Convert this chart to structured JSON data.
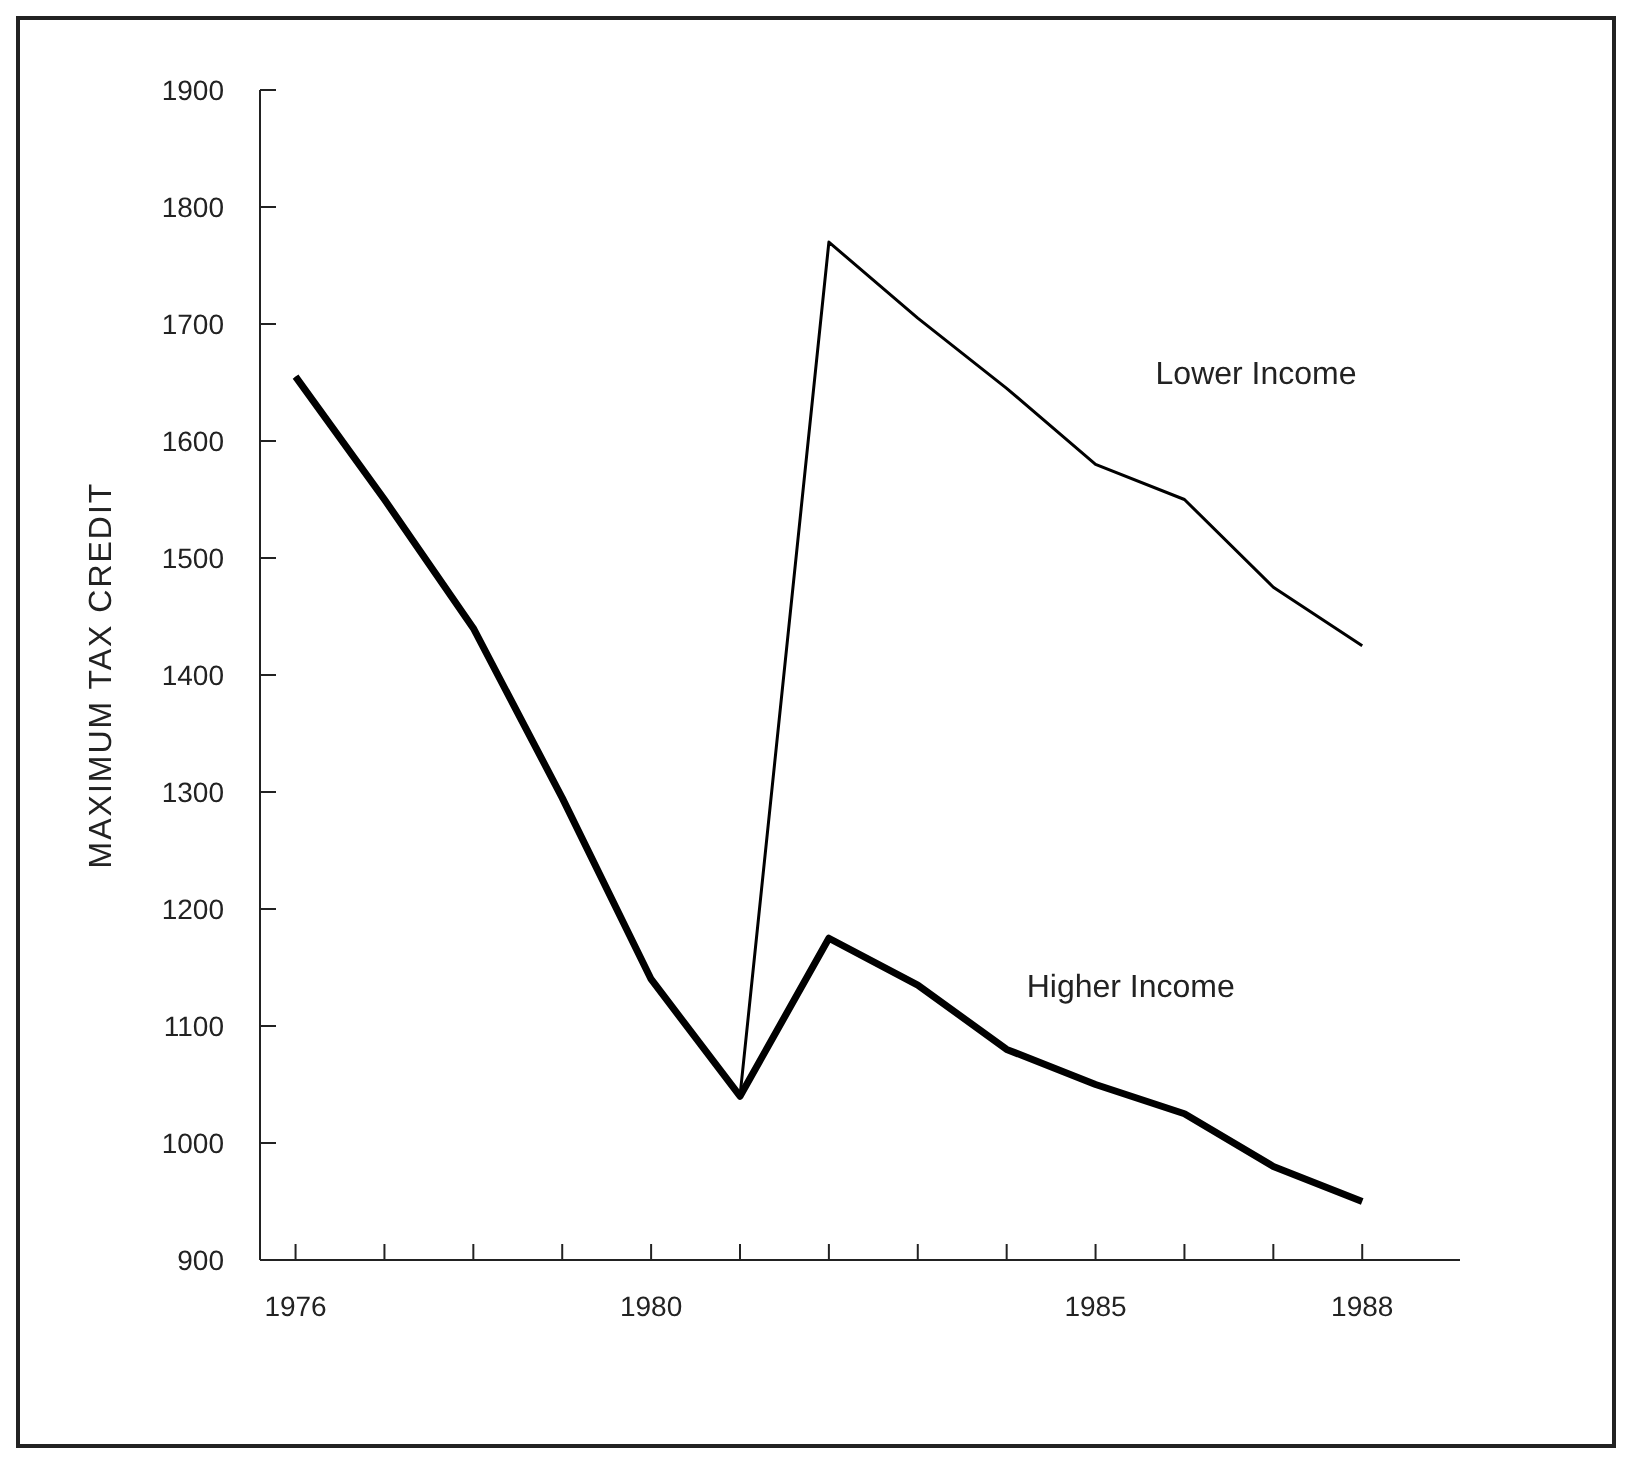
{
  "chart_data": {
    "type": "line",
    "ylabel": "MAXIMUM TAX CREDIT",
    "x": [
      1976,
      1977,
      1978,
      1979,
      1980,
      1981,
      1982,
      1983,
      1984,
      1985,
      1986,
      1987,
      1988
    ],
    "series": [
      {
        "name": "Lower Income",
        "color": "#000000",
        "values": [
          1655,
          1550,
          1440,
          1295,
          1140,
          1040,
          1770,
          1705,
          1645,
          1580,
          1550,
          1475,
          1425
        ]
      },
      {
        "name": "Higher Income",
        "color": "#000000",
        "values": [
          1655,
          1550,
          1440,
          1295,
          1140,
          1040,
          1175,
          1135,
          1080,
          1050,
          1025,
          980,
          950
        ]
      }
    ],
    "xlim": [
      1975.6,
      1989.1
    ],
    "xticks": [
      1976,
      {
        "value": 1977,
        "label": null
      },
      {
        "value": 1978,
        "label": null
      },
      {
        "value": 1979,
        "label": null
      },
      1980,
      {
        "value": 1981,
        "label": null
      },
      {
        "value": 1982,
        "label": null
      },
      {
        "value": 1983,
        "label": null
      },
      {
        "value": 1984,
        "label": null
      },
      1985,
      {
        "value": 1986,
        "label": null
      },
      {
        "value": 1987,
        "label": null
      },
      1988
    ],
    "ylim": [
      900,
      1900
    ],
    "yticks": [
      900,
      1000,
      1100,
      1200,
      1300,
      1400,
      1500,
      1600,
      1700,
      1800,
      1900
    ],
    "grid": false,
    "legend": false,
    "marker": "none",
    "line_style": "solid"
  }
}
